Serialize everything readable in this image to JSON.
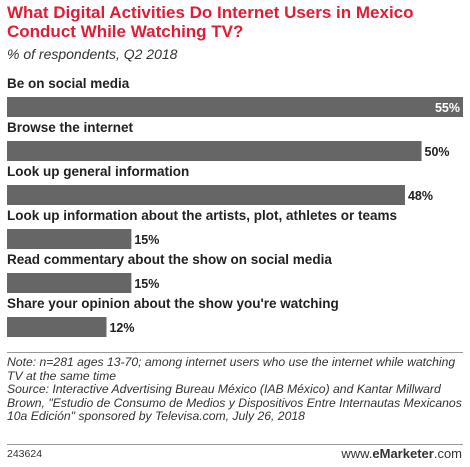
{
  "header": {
    "title": "What Digital Activities Do Internet Users in Mexico Conduct While Watching TV?",
    "subtitle": "% of respondents, Q2 2018"
  },
  "chart_data": {
    "type": "bar",
    "orientation": "horizontal",
    "categories": [
      "Be on social media",
      "Browse the internet",
      "Look up general information",
      "Look up information about the artists, plot, athletes or teams",
      "Read commentary about the show on social media",
      "Share your opinion about the show you're watching"
    ],
    "values": [
      55,
      50,
      48,
      15,
      15,
      12
    ],
    "value_labels": [
      "55%",
      "50%",
      "48%",
      "15%",
      "15%",
      "12%"
    ],
    "unit": "%",
    "bar_color": "#666666",
    "xlim": [
      0,
      55
    ]
  },
  "footer": {
    "note": "Note: n=281 ages 13-70; among internet users who use the internet while watching TV at the same time",
    "source": "Source: Interactive Advertising Bureau México (IAB México) and Kantar Millward Brown, \"Estudio de Consumo de Medios y Dispositivos Entre Internautas Mexicanos 10a Edición\" sponsored by Televisa.com, July 26, 2018",
    "chart_id": "243624",
    "logo_prefix": "www.",
    "logo_brand": "eMarketer",
    "logo_suffix": ".com"
  },
  "colors": {
    "title": "#e11d35",
    "bar": "#666666"
  }
}
